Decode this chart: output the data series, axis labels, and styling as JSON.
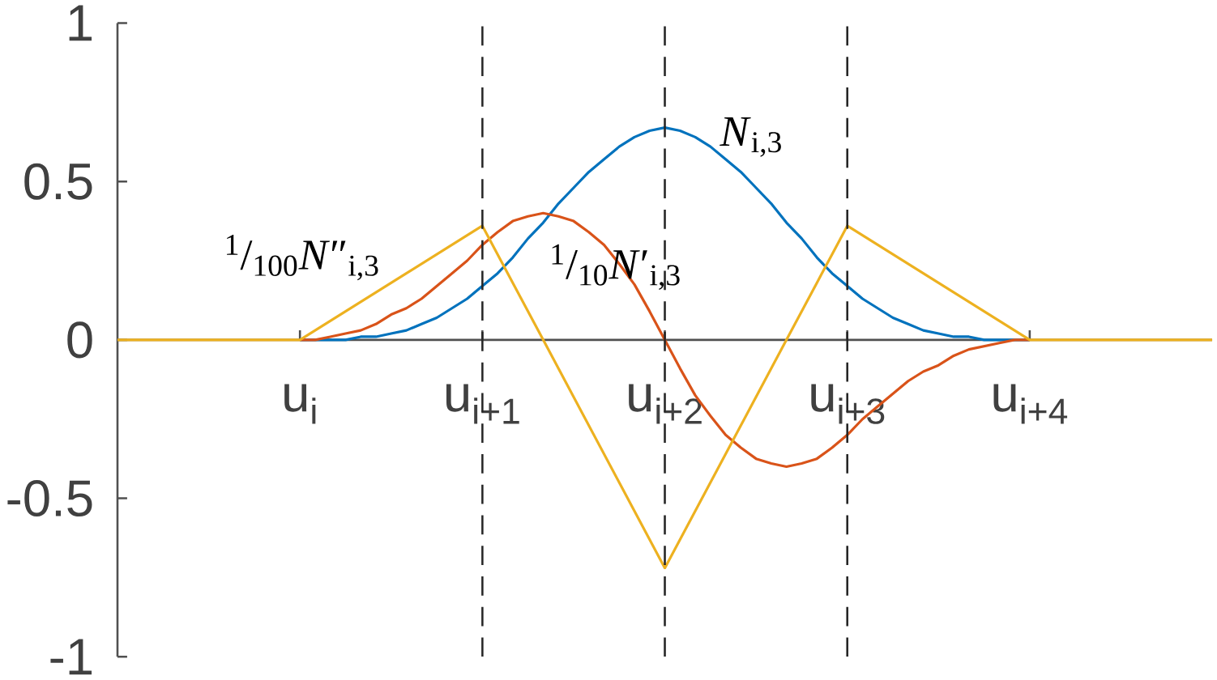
{
  "chart_data": {
    "type": "line",
    "categories": [
      null,
      null,
      null,
      null,
      null,
      null,
      null,
      null,
      null,
      null,
      null,
      null,
      "u$_{i}$",
      null,
      null,
      null,
      null,
      null,
      null,
      null,
      null,
      null,
      null,
      null,
      "u$_{i+1}$",
      null,
      null,
      null,
      null,
      null,
      null,
      null,
      null,
      null,
      null,
      null,
      "u$_{i+2}$",
      null,
      null,
      null,
      null,
      null,
      null,
      null,
      null,
      null,
      null,
      null,
      "u$_{i+3}$",
      null,
      null,
      null,
      null,
      null,
      null,
      null,
      null,
      null,
      null,
      null,
      "u$_{i+4}$",
      null,
      null,
      null,
      null,
      null,
      null,
      null,
      null,
      null,
      null,
      null,
      null
    ],
    "series": [
      {
        "name": "*N*$_{i,3}$",
        "color": "#0072bd",
        "values": [
          null,
          null,
          null,
          null,
          null,
          null,
          null,
          null,
          null,
          null,
          null,
          null,
          0,
          0,
          0,
          0,
          0.01,
          0.01,
          0.02,
          0.03,
          0.05,
          0.07,
          0.1,
          0.13,
          0.17,
          0.21,
          0.26,
          0.32,
          0.37,
          0.43,
          0.48,
          0.53,
          0.57,
          0.61,
          0.64,
          0.66,
          0.67,
          0.66,
          0.64,
          0.61,
          0.57,
          0.53,
          0.48,
          0.43,
          0.37,
          0.32,
          0.26,
          0.21,
          0.17,
          0.13,
          0.1,
          0.07,
          0.05,
          0.03,
          0.02,
          0.01,
          0.01,
          0,
          0,
          0,
          0,
          null,
          null,
          null,
          null,
          null,
          null,
          null,
          null,
          null,
          null,
          null,
          null
        ]
      },
      {
        "name": "$^{1}$/$_{10}$*N*′$_{i,3}$",
        "color": "#d95319",
        "values": [
          null,
          null,
          null,
          null,
          null,
          null,
          null,
          null,
          null,
          null,
          null,
          null,
          0,
          0,
          0.01,
          0.02,
          0.03,
          0.05,
          0.08,
          0.1,
          0.13,
          0.17,
          0.21,
          0.25,
          0.3,
          0.34,
          0.375,
          0.39,
          0.4,
          0.39,
          0.375,
          0.34,
          0.3,
          0.24,
          0.175,
          0.09,
          0,
          -0.09,
          -0.175,
          -0.24,
          -0.3,
          -0.34,
          -0.375,
          -0.39,
          -0.4,
          -0.39,
          -0.375,
          -0.34,
          -0.3,
          -0.25,
          -0.21,
          -0.17,
          -0.13,
          -0.1,
          -0.08,
          -0.05,
          -0.03,
          -0.02,
          -0.01,
          0,
          0,
          null,
          null,
          null,
          null,
          null,
          null,
          null,
          null,
          null,
          null,
          null,
          null
        ]
      },
      {
        "name": "$^{1}$/$_{100}$*N*″$_{i,3}$",
        "color": "#edb120",
        "values": [
          0,
          0,
          0,
          0,
          0,
          0,
          0,
          0,
          0,
          0,
          0,
          0,
          0,
          0.03,
          0.06,
          0.09,
          0.12,
          0.15,
          0.18,
          0.21,
          0.24,
          0.27,
          0.3,
          0.33,
          0.36,
          0.27,
          0.18,
          0.09,
          0,
          -0.09,
          -0.18,
          -0.27,
          -0.36,
          -0.45,
          -0.54,
          -0.63,
          -0.72,
          -0.63,
          -0.54,
          -0.45,
          -0.36,
          -0.27,
          -0.18,
          -0.09,
          0,
          0.09,
          0.18,
          0.27,
          0.36,
          0.33,
          0.3,
          0.27,
          0.24,
          0.21,
          0.18,
          0.15,
          0.12,
          0.09,
          0.06,
          0.03,
          0,
          0,
          0,
          0,
          0,
          0,
          0,
          0,
          0,
          0,
          0,
          0,
          0
        ]
      }
    ],
    "ylim": [
      -1,
      1
    ],
    "yticks": [
      -1,
      -0.5,
      0,
      0.5,
      1
    ],
    "ref_lines": [
      {
        "axis": "x",
        "value": "u$_{i+1}$",
        "color": "#262626",
        "line_style": "dashed"
      },
      {
        "axis": "x",
        "value": "u$_{i+2}$",
        "color": "#262626",
        "line_style": "dashed"
      },
      {
        "axis": "x",
        "value": "u$_{i+3}$",
        "color": "#262626",
        "line_style": "dashed"
      }
    ]
  }
}
